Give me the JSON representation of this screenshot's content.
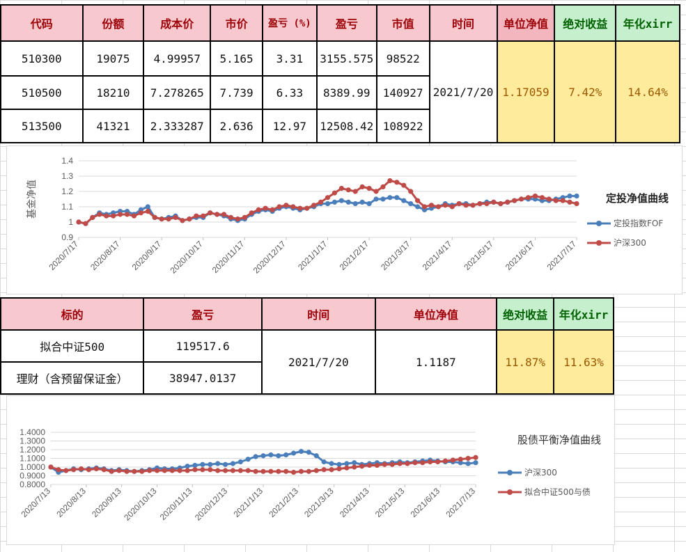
{
  "table1": {
    "headers": [
      "代码",
      "份额",
      "成本价",
      "市价",
      "盈亏 (%)",
      "盈亏",
      "市值",
      "时间",
      "单位净值",
      "绝对收益",
      "年化xirr"
    ],
    "rows": [
      [
        "510300",
        "19075",
        "4.99957",
        "5.165",
        "3.31",
        "3155.575",
        "98522"
      ],
      [
        "510500",
        "18210",
        "7.278265",
        "7.739",
        "6.33",
        "8389.99",
        "140927"
      ],
      [
        "513500",
        "41321",
        "2.333287",
        "2.636",
        "12.97",
        "12508.42",
        "108922"
      ]
    ],
    "time": "2021/7/20",
    "nav": "1.17059",
    "abs_return": "7.42%",
    "xirr": "14.64%"
  },
  "table2": {
    "headers": [
      "标的",
      "盈亏",
      "时间",
      "单位净值",
      "绝对收益",
      "年化xirr"
    ],
    "rows": [
      [
        "拟合中证500",
        "119517.6"
      ],
      [
        "理财（含预留保证金）",
        "38947.0137"
      ]
    ],
    "time": "2021/7/20",
    "nav": "1.1187",
    "abs_return": "11.87%",
    "xirr": "11.63%"
  },
  "colors": {
    "blue": "#4a7ebb",
    "red": "#be4b48",
    "pink": "#f8c8cf",
    "green": "#c6efce",
    "yellow": "#ffeb9c"
  },
  "chart_data": [
    {
      "type": "line",
      "title": "定投净值曲线",
      "ylabel": "基金净值",
      "ylim": [
        0.9,
        1.4
      ],
      "yticks": [
        "1.4",
        "1.3",
        "1.2",
        "1.1",
        "1",
        "0.9"
      ],
      "xticks": [
        "2020/7/17",
        "2020/8/17",
        "2020/9/17",
        "2020/10/17",
        "2020/11/17",
        "2020/12/17",
        "2021/1/17",
        "2021/2/17",
        "2021/3/17",
        "2021/4/17",
        "2021/5/17",
        "2021/6/17",
        "2021/7/17"
      ],
      "legend_position": "right",
      "series": [
        {
          "name": "定投指数FOF",
          "color": "#4a7ebb",
          "values": [
            1.0,
            0.99,
            1.03,
            1.06,
            1.05,
            1.06,
            1.07,
            1.07,
            1.05,
            1.08,
            1.1,
            1.03,
            1.02,
            1.03,
            1.04,
            1.01,
            1.02,
            1.03,
            1.03,
            1.06,
            1.05,
            1.04,
            1.02,
            1.01,
            1.02,
            1.05,
            1.07,
            1.08,
            1.07,
            1.09,
            1.1,
            1.09,
            1.08,
            1.09,
            1.1,
            1.12,
            1.12,
            1.13,
            1.14,
            1.13,
            1.12,
            1.13,
            1.12,
            1.15,
            1.15,
            1.16,
            1.16,
            1.14,
            1.12,
            1.1,
            1.08,
            1.09,
            1.1,
            1.12,
            1.11,
            1.12,
            1.12,
            1.11,
            1.12,
            1.13,
            1.13,
            1.12,
            1.13,
            1.14,
            1.15,
            1.15,
            1.15,
            1.14,
            1.14,
            1.15,
            1.16,
            1.17,
            1.17
          ]
        },
        {
          "name": "沪深300",
          "color": "#be4b48",
          "values": [
            1.0,
            0.99,
            1.03,
            1.05,
            1.04,
            1.04,
            1.05,
            1.05,
            1.04,
            1.06,
            1.07,
            1.03,
            1.02,
            1.02,
            1.03,
            1.01,
            1.02,
            1.04,
            1.04,
            1.06,
            1.05,
            1.05,
            1.03,
            1.02,
            1.03,
            1.06,
            1.08,
            1.09,
            1.08,
            1.1,
            1.11,
            1.1,
            1.09,
            1.09,
            1.11,
            1.13,
            1.16,
            1.19,
            1.22,
            1.21,
            1.2,
            1.23,
            1.22,
            1.2,
            1.23,
            1.27,
            1.26,
            1.24,
            1.2,
            1.14,
            1.1,
            1.11,
            1.1,
            1.11,
            1.1,
            1.12,
            1.11,
            1.11,
            1.12,
            1.12,
            1.13,
            1.12,
            1.13,
            1.14,
            1.15,
            1.16,
            1.17,
            1.16,
            1.15,
            1.14,
            1.14,
            1.13,
            1.12
          ]
        }
      ]
    },
    {
      "type": "line",
      "title": "股债平衡净值曲线",
      "ylim": [
        0.8,
        1.4
      ],
      "yticks": [
        "1.4000",
        "1.3000",
        "1.2000",
        "1.1000",
        "1.0000",
        "0.9000",
        "0.8000"
      ],
      "xticks": [
        "2020/7/13",
        "2020/8/13",
        "2020/9/13",
        "2020/10/13",
        "2020/11/13",
        "2020/12/13",
        "2021/1/13",
        "2021/2/13",
        "2021/3/13",
        "2021/4/13",
        "2021/5/13",
        "2021/6/13",
        "2021/7/13"
      ],
      "legend_position": "right",
      "series": [
        {
          "name": "沪深300",
          "color": "#4a7ebb",
          "values": [
            1.0,
            0.94,
            0.96,
            0.98,
            0.97,
            0.98,
            0.99,
            0.98,
            0.96,
            0.97,
            0.96,
            0.95,
            0.96,
            0.97,
            0.99,
            0.98,
            0.98,
            0.99,
            1.01,
            1.02,
            1.03,
            1.03,
            1.04,
            1.03,
            1.04,
            1.06,
            1.09,
            1.12,
            1.13,
            1.14,
            1.13,
            1.14,
            1.16,
            1.18,
            1.17,
            1.13,
            1.06,
            1.04,
            1.03,
            1.04,
            1.05,
            1.03,
            1.04,
            1.05,
            1.04,
            1.05,
            1.06,
            1.05,
            1.06,
            1.07,
            1.08,
            1.07,
            1.06,
            1.06,
            1.05,
            1.04,
            1.05
          ]
        },
        {
          "name": "拟合中证500与债",
          "color": "#be4b48",
          "values": [
            1.0,
            0.97,
            0.96,
            0.97,
            0.98,
            0.97,
            0.98,
            0.97,
            0.95,
            0.96,
            0.95,
            0.95,
            0.95,
            0.96,
            0.96,
            0.96,
            0.96,
            0.96,
            0.96,
            0.97,
            0.97,
            0.97,
            0.96,
            0.96,
            0.96,
            0.96,
            0.96,
            0.95,
            0.95,
            0.95,
            0.95,
            0.95,
            0.94,
            0.95,
            0.95,
            0.96,
            0.97,
            0.97,
            0.98,
            0.99,
            1.0,
            1.01,
            1.02,
            1.02,
            1.03,
            1.03,
            1.04,
            1.04,
            1.05,
            1.05,
            1.06,
            1.06,
            1.07,
            1.08,
            1.09,
            1.1,
            1.11
          ]
        }
      ]
    }
  ]
}
